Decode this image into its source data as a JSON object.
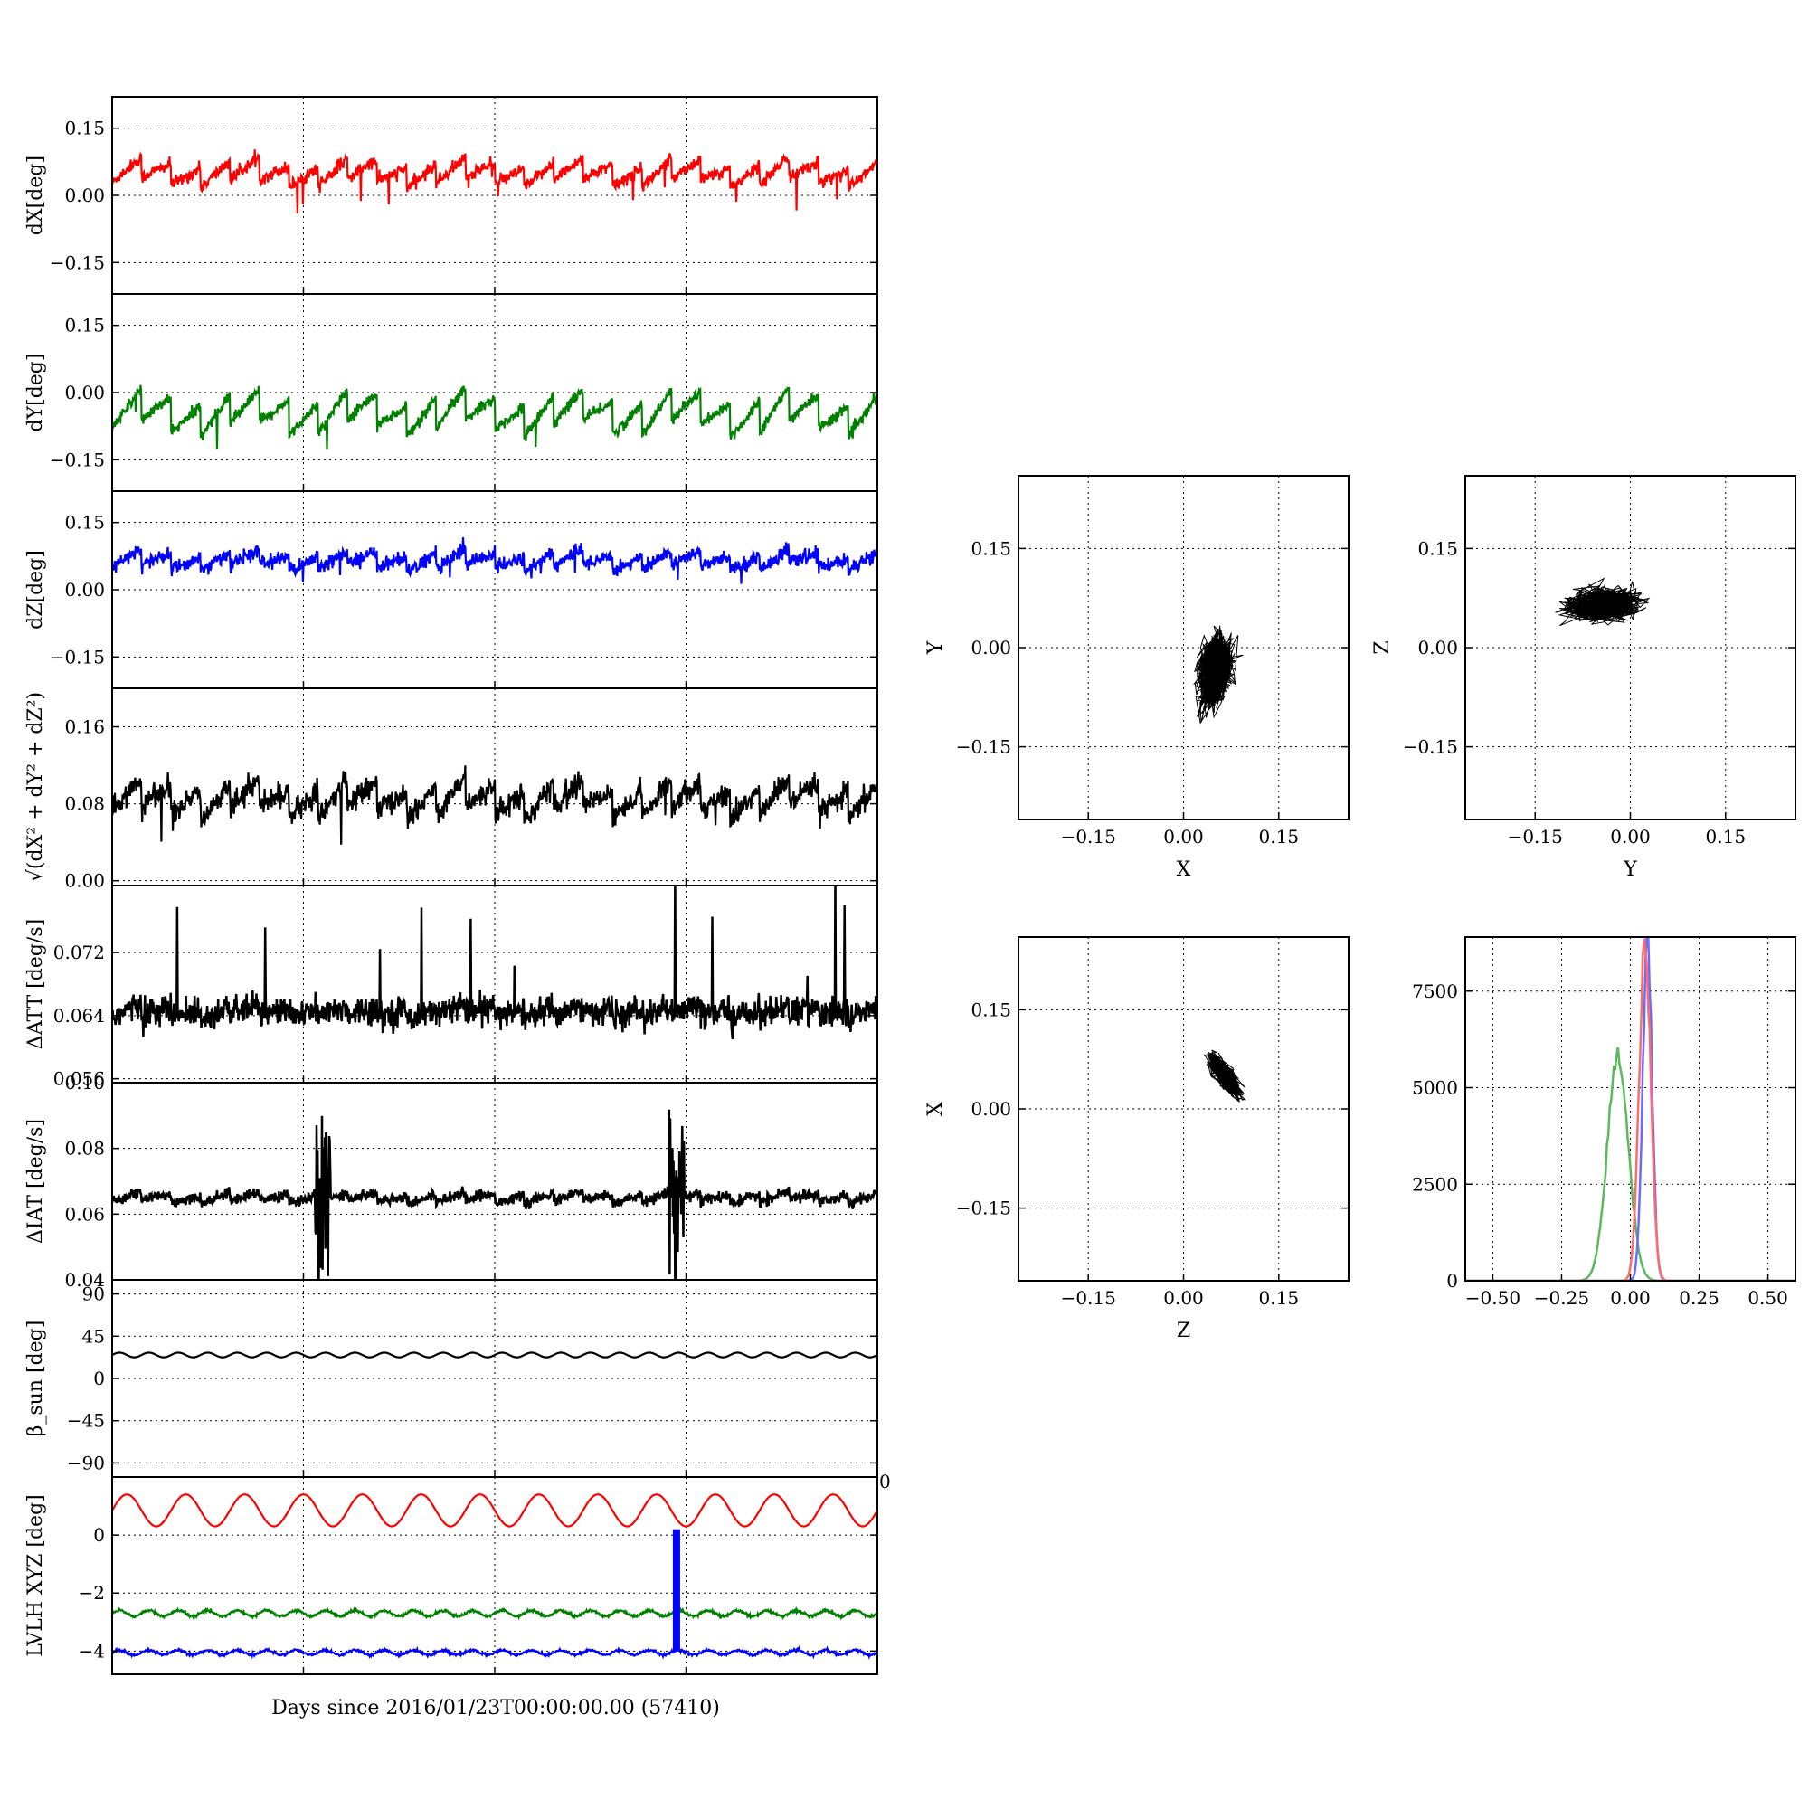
{
  "figure": {
    "xlabel": "Days since 2016/01/23T00:00:00.00 (57410)"
  },
  "chart_data": [
    {
      "id": "dx",
      "type": "line",
      "ylabel": "dX[deg]",
      "ylim": [
        -0.22,
        0.22
      ],
      "yticks": [
        "0.15",
        "0.00",
        "−0.15"
      ],
      "ytick_values": [
        0.15,
        0.0,
        -0.15
      ],
      "xlim": [
        0,
        4
      ],
      "grid": true,
      "series": [
        {
          "color": "#ff0000",
          "base": 0.05,
          "amp": 0.028,
          "noise": 0.007,
          "dips": 0.05
        }
      ]
    },
    {
      "id": "dy",
      "type": "line",
      "ylabel": "dY[deg]",
      "ylim": [
        -0.22,
        0.22
      ],
      "yticks": [
        "0.15",
        "0.00",
        "−0.15"
      ],
      "ytick_values": [
        0.15,
        0.0,
        -0.15
      ],
      "xlim": [
        0,
        4
      ],
      "grid": true,
      "series": [
        {
          "color": "#008000",
          "base": -0.045,
          "amp": 0.045,
          "noise": 0.006,
          "dips": 0.05
        }
      ]
    },
    {
      "id": "dz",
      "type": "line",
      "ylabel": "dZ[deg]",
      "ylim": [
        -0.22,
        0.22
      ],
      "yticks": [
        "0.15",
        "0.00",
        "−0.15"
      ],
      "ytick_values": [
        0.15,
        0.0,
        -0.15
      ],
      "xlim": [
        0,
        4
      ],
      "grid": true,
      "series": [
        {
          "color": "#0000ff",
          "base": 0.065,
          "amp": 0.02,
          "noise": 0.008,
          "dips": 0.035
        }
      ]
    },
    {
      "id": "mag",
      "type": "line",
      "ylabel": "√(dX² + dY² + dZ²)",
      "ylim": [
        -0.005,
        0.2
      ],
      "yticks": [
        "0.16",
        "0.08",
        "0.00"
      ],
      "ytick_values": [
        0.16,
        0.08,
        0.0
      ],
      "xlim": [
        0,
        4
      ],
      "grid": true,
      "series": [
        {
          "color": "#000000",
          "base": 0.085,
          "amp": 0.018,
          "noise": 0.006,
          "dips": 0.04
        }
      ]
    },
    {
      "id": "datt",
      "type": "line",
      "ylabel": "ΔATT [deg/s]",
      "ylim": [
        0.0555,
        0.0805
      ],
      "yticks": [
        "0.072",
        "0.064",
        "0.056"
      ],
      "ytick_values": [
        0.072,
        0.064,
        0.056
      ],
      "xlim": [
        0,
        4
      ],
      "grid": true,
      "series": [
        {
          "color": "#000000",
          "base": 0.0645,
          "amp": 0.0007,
          "noise": 0.0009,
          "spikes": 0.012
        }
      ]
    },
    {
      "id": "diat",
      "type": "line",
      "ylabel": "ΔIAT [deg/s]",
      "ylim": [
        0.04,
        0.1
      ],
      "yticks": [
        "0.10",
        "0.08",
        "0.06",
        "0.04"
      ],
      "ytick_values": [
        0.1,
        0.08,
        0.06,
        0.04
      ],
      "xlim": [
        0,
        4
      ],
      "grid": true,
      "series": [
        {
          "color": "#000000",
          "base": 0.065,
          "amp": 0.0015,
          "noise": 0.0008,
          "bursts": [
            1.1,
            2.95
          ]
        }
      ]
    },
    {
      "id": "beta",
      "type": "line",
      "ylabel": "β_sun [deg]",
      "ylim": [
        -105,
        105
      ],
      "yticks": [
        "90",
        "45",
        "0",
        "−45",
        "−90"
      ],
      "ytick_values": [
        90,
        45,
        0,
        -45,
        -90
      ],
      "xlim": [
        0,
        4
      ],
      "grid": true,
      "series": [
        {
          "color": "#000000",
          "base": 25,
          "amp": 2.5,
          "noise": 0
        }
      ]
    },
    {
      "id": "lvlh",
      "type": "line",
      "ylabel": "LVLH XYZ [deg]",
      "ylim": [
        -4.8,
        2
      ],
      "yticks": [
        "0",
        "−2",
        "−4"
      ],
      "ytick_values": [
        0,
        -2,
        -4
      ],
      "xlim": [
        0,
        4
      ],
      "grid": true,
      "edge_tick_right": "0",
      "series": [
        {
          "color": "#ff0000",
          "base": 0.85,
          "amp": 0.55,
          "noise": 0
        },
        {
          "color": "#008000",
          "base": -2.7,
          "amp": 0.1,
          "noise": 0.02
        },
        {
          "color": "#0000ff",
          "base": -4.05,
          "amp": 0.08,
          "noise": 0.02
        }
      ],
      "marker_bar": {
        "x": 2.95,
        "y_top": 0.2,
        "y_bottom": -4.0,
        "color": "#0000ff"
      }
    },
    {
      "id": "scatter-xy",
      "type": "scatter",
      "xlabel": "X",
      "ylabel": "Y",
      "xlim": [
        -0.26,
        0.26
      ],
      "ylim": [
        -0.26,
        0.26
      ],
      "xticks": [
        "−0.15",
        "0.00",
        "0.15"
      ],
      "yticks": [
        "0.15",
        "0.00",
        "−0.15"
      ],
      "tick_values": [
        -0.15,
        0.0,
        0.15
      ],
      "grid": true,
      "color": "#000000",
      "center": [
        0.05,
        -0.035
      ],
      "spread": [
        0.022,
        0.045
      ],
      "corr": 0.35
    },
    {
      "id": "scatter-yz",
      "type": "scatter",
      "xlabel": "Y",
      "ylabel": "Z",
      "xlim": [
        -0.26,
        0.26
      ],
      "ylim": [
        -0.26,
        0.26
      ],
      "xticks": [
        "−0.15",
        "0.00",
        "0.15"
      ],
      "yticks": [
        "0.15",
        "0.00",
        "−0.15"
      ],
      "tick_values": [
        -0.15,
        0.0,
        0.15
      ],
      "grid": true,
      "color": "#000000",
      "center": [
        -0.045,
        0.065
      ],
      "spread": [
        0.045,
        0.02
      ],
      "corr": 0.15
    },
    {
      "id": "scatter-zx",
      "type": "scatter",
      "xlabel": "Z",
      "ylabel": "X",
      "xlim": [
        -0.26,
        0.26
      ],
      "ylim": [
        -0.26,
        0.26
      ],
      "xticks": [
        "−0.15",
        "0.00",
        "0.15"
      ],
      "yticks": [
        "0.15",
        "0.00",
        "−0.15"
      ],
      "tick_values": [
        -0.15,
        0.0,
        0.15
      ],
      "grid": true,
      "color": "#000000",
      "center": [
        0.065,
        0.05
      ],
      "spread": [
        0.02,
        0.025
      ],
      "corr": -0.8
    },
    {
      "id": "histogram",
      "type": "area",
      "xlim": [
        -0.6,
        0.6
      ],
      "ylim": [
        0,
        8900
      ],
      "xticks": [
        "−0.50",
        "−0.25",
        "0.00",
        "0.25",
        "0.50"
      ],
      "xtick_values": [
        -0.5,
        -0.25,
        0.0,
        0.25,
        0.5
      ],
      "yticks": [
        "7500",
        "5000",
        "2500",
        "0"
      ],
      "ytick_values": [
        7500,
        5000,
        2500,
        0
      ],
      "grid": true,
      "series": [
        {
          "color": "#5cb85c",
          "mean": -0.045,
          "sd": 0.038,
          "peak": 5850
        },
        {
          "color": "#6b6bff",
          "mean": 0.062,
          "sd": 0.017,
          "peak": 8800
        },
        {
          "color": "#ff6b6b",
          "mean": 0.053,
          "sd": 0.021,
          "peak": 8600
        }
      ]
    }
  ]
}
